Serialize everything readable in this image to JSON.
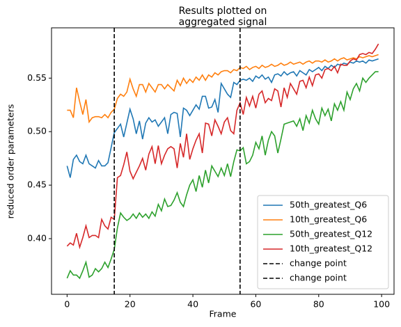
{
  "chart_data": {
    "type": "line",
    "title": [
      "Results plotted on",
      "aggregated signal"
    ],
    "xlabel": "Frame",
    "ylabel": "reduced order parameters",
    "xlim": [
      -4.95,
      103.95
    ],
    "ylim": [
      0.348,
      0.597
    ],
    "xticks": [
      0,
      20,
      40,
      60,
      80,
      100
    ],
    "yticks": [
      {
        "value": 0.4,
        "label": "0.40"
      },
      0.45,
      {
        "value": 0.5,
        "label": "0.50"
      },
      0.55
    ],
    "legend": "lower right",
    "x": [
      0,
      1,
      2,
      3,
      4,
      5,
      6,
      7,
      8,
      9,
      10,
      11,
      12,
      13,
      14,
      15,
      16,
      17,
      18,
      19,
      20,
      21,
      22,
      23,
      24,
      25,
      26,
      27,
      28,
      29,
      30,
      31,
      32,
      33,
      34,
      35,
      36,
      37,
      38,
      39,
      40,
      41,
      42,
      43,
      44,
      45,
      46,
      47,
      48,
      49,
      50,
      51,
      52,
      53,
      54,
      55,
      56,
      57,
      58,
      59,
      60,
      61,
      62,
      63,
      64,
      65,
      66,
      67,
      68,
      69,
      70,
      71,
      72,
      73,
      74,
      75,
      76,
      77,
      78,
      79,
      80,
      81,
      82,
      83,
      84,
      85,
      86,
      87,
      88,
      89,
      90,
      91,
      92,
      93,
      94,
      95,
      96,
      97,
      98,
      99
    ],
    "series": [
      {
        "name": "50th_greatest_Q6",
        "color": "#1f77b4",
        "values": [
          0.468,
          0.457,
          0.474,
          0.478,
          0.472,
          0.47,
          0.478,
          0.47,
          0.468,
          0.466,
          0.473,
          0.468,
          0.468,
          0.471,
          0.485,
          0.499,
          0.503,
          0.507,
          0.495,
          0.508,
          0.521,
          0.512,
          0.498,
          0.51,
          0.493,
          0.508,
          0.513,
          0.509,
          0.511,
          0.505,
          0.509,
          0.513,
          0.498,
          0.516,
          0.518,
          0.517,
          0.495,
          0.522,
          0.52,
          0.515,
          0.52,
          0.525,
          0.521,
          0.533,
          0.533,
          0.522,
          0.523,
          0.53,
          0.518,
          0.545,
          0.54,
          0.535,
          0.532,
          0.546,
          0.544,
          0.548,
          0.549,
          0.548,
          0.55,
          0.547,
          0.552,
          0.55,
          0.553,
          0.549,
          0.551,
          0.546,
          0.553,
          0.554,
          0.552,
          0.556,
          0.553,
          0.555,
          0.556,
          0.552,
          0.557,
          0.555,
          0.553,
          0.558,
          0.556,
          0.558,
          0.56,
          0.557,
          0.561,
          0.559,
          0.562,
          0.56,
          0.563,
          0.562,
          0.564,
          0.563,
          0.565,
          0.564,
          0.566,
          0.565,
          0.566,
          0.564,
          0.567,
          0.566,
          0.567,
          0.568
        ]
      },
      {
        "name": "10th_greatest_Q6",
        "color": "#ff7f0e",
        "values": [
          0.52,
          0.52,
          0.513,
          0.541,
          0.528,
          0.516,
          0.53,
          0.509,
          0.513,
          0.514,
          0.514,
          0.513,
          0.516,
          0.513,
          0.518,
          0.521,
          0.531,
          0.535,
          0.533,
          0.537,
          0.549,
          0.54,
          0.533,
          0.544,
          0.544,
          0.537,
          0.545,
          0.541,
          0.537,
          0.544,
          0.544,
          0.54,
          0.544,
          0.541,
          0.538,
          0.548,
          0.543,
          0.55,
          0.545,
          0.549,
          0.546,
          0.551,
          0.548,
          0.553,
          0.548,
          0.553,
          0.551,
          0.555,
          0.553,
          0.556,
          0.557,
          0.557,
          0.555,
          0.558,
          0.557,
          0.56,
          0.559,
          0.561,
          0.558,
          0.56,
          0.561,
          0.559,
          0.562,
          0.56,
          0.561,
          0.563,
          0.561,
          0.562,
          0.564,
          0.562,
          0.563,
          0.565,
          0.563,
          0.564,
          0.565,
          0.563,
          0.565,
          0.566,
          0.564,
          0.566,
          0.566,
          0.565,
          0.567,
          0.565,
          0.566,
          0.568,
          0.566,
          0.568,
          0.569,
          0.567,
          0.568,
          0.569,
          0.568,
          0.57,
          0.569,
          0.57,
          0.571,
          0.57,
          0.571,
          0.572
        ]
      },
      {
        "name": "50th_greatest_Q12",
        "color": "#2ca02c",
        "values": [
          0.363,
          0.37,
          0.366,
          0.366,
          0.363,
          0.37,
          0.378,
          0.364,
          0.366,
          0.372,
          0.369,
          0.372,
          0.378,
          0.373,
          0.381,
          0.39,
          0.41,
          0.424,
          0.42,
          0.417,
          0.419,
          0.423,
          0.419,
          0.424,
          0.42,
          0.423,
          0.419,
          0.425,
          0.421,
          0.432,
          0.426,
          0.437,
          0.43,
          0.431,
          0.436,
          0.443,
          0.434,
          0.43,
          0.441,
          0.45,
          0.455,
          0.444,
          0.459,
          0.448,
          0.464,
          0.452,
          0.468,
          0.463,
          0.458,
          0.466,
          0.459,
          0.47,
          0.458,
          0.472,
          0.483,
          0.482,
          0.485,
          0.47,
          0.472,
          0.478,
          0.49,
          0.484,
          0.496,
          0.478,
          0.492,
          0.5,
          0.496,
          0.48,
          0.493,
          0.507,
          0.508,
          0.509,
          0.51,
          0.505,
          0.512,
          0.501,
          0.515,
          0.508,
          0.52,
          0.512,
          0.507,
          0.522,
          0.515,
          0.521,
          0.51,
          0.526,
          0.52,
          0.528,
          0.52,
          0.537,
          0.53,
          0.54,
          0.545,
          0.538,
          0.55,
          0.546,
          0.55,
          0.553,
          0.556,
          0.556
        ]
      },
      {
        "name": "10th_greatest_Q12",
        "color": "#d62728",
        "values": [
          0.393,
          0.396,
          0.394,
          0.405,
          0.392,
          0.401,
          0.412,
          0.401,
          0.403,
          0.403,
          0.401,
          0.418,
          0.412,
          0.409,
          0.42,
          0.418,
          0.457,
          0.459,
          0.469,
          0.481,
          0.463,
          0.456,
          0.462,
          0.468,
          0.475,
          0.464,
          0.479,
          0.486,
          0.47,
          0.487,
          0.47,
          0.478,
          0.484,
          0.486,
          0.484,
          0.466,
          0.489,
          0.476,
          0.498,
          0.474,
          0.484,
          0.492,
          0.498,
          0.48,
          0.508,
          0.507,
          0.496,
          0.511,
          0.505,
          0.498,
          0.509,
          0.513,
          0.501,
          0.498,
          0.52,
          0.527,
          0.516,
          0.532,
          0.524,
          0.533,
          0.522,
          0.535,
          0.538,
          0.527,
          0.531,
          0.529,
          0.54,
          0.538,
          0.523,
          0.541,
          0.532,
          0.545,
          0.54,
          0.535,
          0.547,
          0.548,
          0.541,
          0.551,
          0.543,
          0.553,
          0.554,
          0.55,
          0.558,
          0.559,
          0.557,
          0.561,
          0.555,
          0.563,
          0.562,
          0.562,
          0.566,
          0.568,
          0.567,
          0.572,
          0.573,
          0.572,
          0.574,
          0.573,
          0.577,
          0.582
        ]
      }
    ],
    "change_points": [
      {
        "name": "change point",
        "x": 15,
        "color": "#000000"
      },
      {
        "name": "change point",
        "x": 55,
        "color": "#000000"
      }
    ]
  }
}
